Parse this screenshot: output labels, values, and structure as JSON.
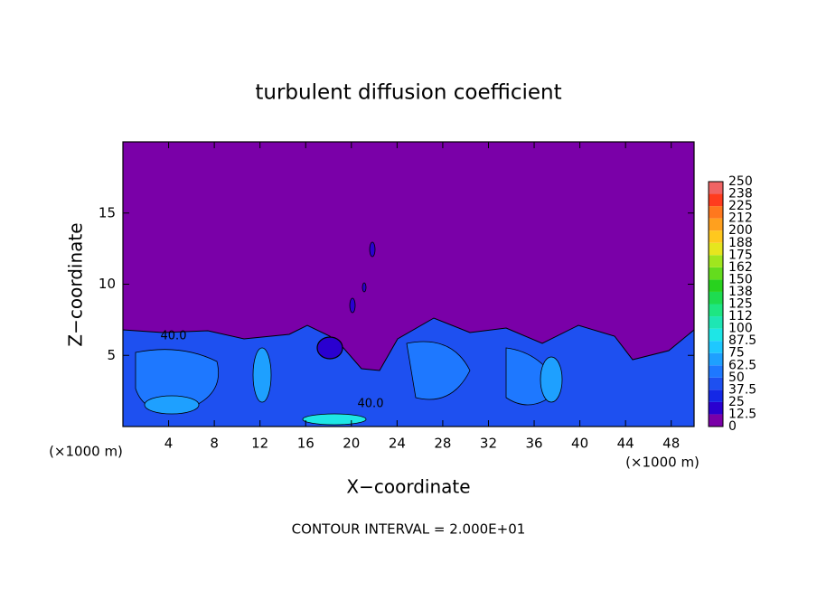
{
  "chart_data": {
    "type": "contour",
    "title": "turbulent diffusion coefficient",
    "xlabel": "X−coordinate",
    "ylabel": "Z−coordinate",
    "x_unit": "(×1000 m)",
    "x_unit_right": "(×1000 m)",
    "footer": "CONTOUR INTERVAL = 2.000E+01",
    "contour_labels": [
      "40.0",
      "40.0"
    ],
    "xlim": [
      0,
      50
    ],
    "xticks": [
      4,
      8,
      12,
      16,
      20,
      24,
      28,
      32,
      36,
      40,
      44,
      48
    ],
    "ylim": [
      0,
      20
    ],
    "yticks": [
      5,
      10,
      15
    ],
    "colorbar": {
      "ticks": [
        0,
        12.5,
        25,
        37.5,
        50,
        62.5,
        75,
        87.5,
        100,
        {
          "value": 112.5,
          "label": "112"
        },
        125,
        {
          "value": 137.5,
          "label": "138"
        },
        150,
        {
          "value": 162.5,
          "label": "162"
        },
        175,
        {
          "value": 187.5,
          "label": "188"
        },
        200,
        {
          "value": 212.5,
          "label": "212"
        },
        225,
        {
          "value": 237.5,
          "label": "238"
        },
        250
      ],
      "colors": [
        "#7a00a8",
        "#2a00d0",
        "#1428e6",
        "#1e50f0",
        "#1e78ff",
        "#1ea0ff",
        "#1ec8ff",
        "#1ee6e6",
        "#1ee6b4",
        "#1ee682",
        "#1edc50",
        "#28d21e",
        "#64dc1e",
        "#a0e61e",
        "#e6e61e",
        "#ffc81e",
        "#ffa01e",
        "#ff781e",
        "#ff3c1e",
        "#f06464"
      ]
    }
  }
}
